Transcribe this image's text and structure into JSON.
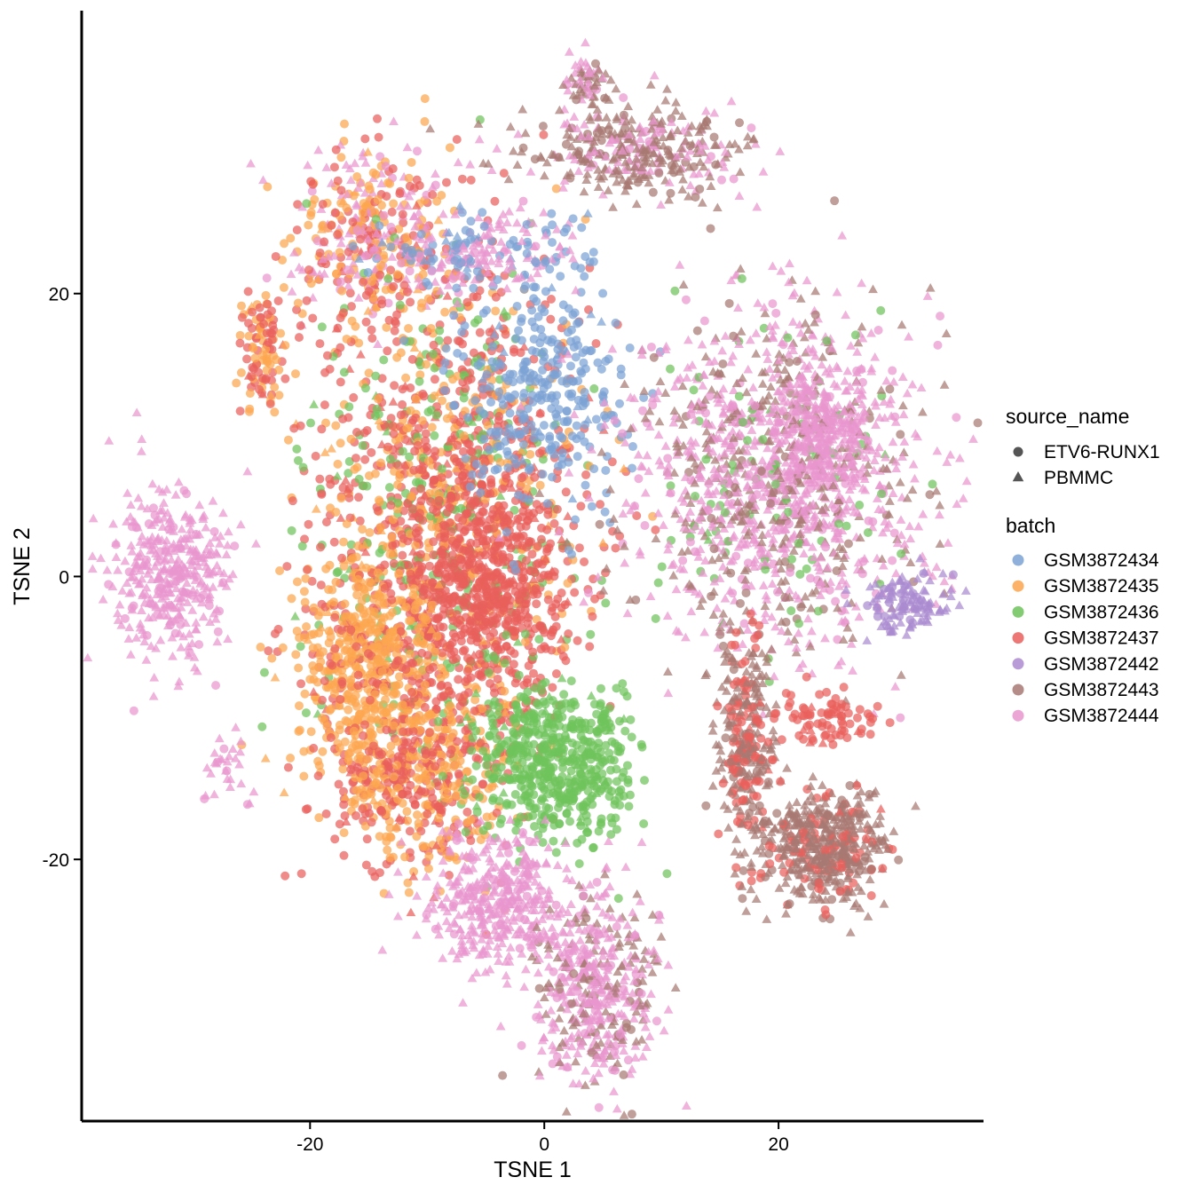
{
  "chart_data": {
    "type": "scatter",
    "title": "",
    "xlabel": "TSNE 1",
    "ylabel": "TSNE 2",
    "xlim": [
      -39.5,
      37.5
    ],
    "ylim": [
      -38.5,
      40
    ],
    "xticks": [
      -20,
      0,
      20
    ],
    "yticks": [
      20,
      0,
      -20
    ],
    "grid": false,
    "legend_position": "right",
    "shape_legend": {
      "title": "source_name",
      "entries": [
        {
          "name": "ETV6-RUNX1",
          "shape": "circle"
        },
        {
          "name": "PBMMC",
          "shape": "triangle"
        }
      ]
    },
    "color_legend": {
      "title": "batch",
      "entries": [
        {
          "name": "GSM3872434",
          "color": "#7ba2d4"
        },
        {
          "name": "GSM3872435",
          "color": "#fca64f"
        },
        {
          "name": "GSM3872436",
          "color": "#6fc35c"
        },
        {
          "name": "GSM3872437",
          "color": "#e95f5c"
        },
        {
          "name": "GSM3872442",
          "color": "#ab8ad0"
        },
        {
          "name": "GSM3872443",
          "color": "#a87872"
        },
        {
          "name": "GSM3872444",
          "color": "#e996cf"
        }
      ]
    },
    "clusters": [
      {
        "label": "upper-left orange/pink",
        "x": -15,
        "y": 24,
        "sx": 3.5,
        "sy": 3.5,
        "n": 380,
        "mix": {
          "GSM3872435": 0.35,
          "GSM3872444": 0.35,
          "GSM3872437": 0.3
        }
      },
      {
        "label": "central red/orange mass",
        "x": -8,
        "y": 5,
        "sx": 6,
        "sy": 9,
        "n": 1500,
        "mix": {
          "GSM3872437": 0.55,
          "GSM3872435": 0.25,
          "GSM3872436": 0.2
        }
      },
      {
        "label": "central red core",
        "x": -5,
        "y": -1,
        "sx": 3.5,
        "sy": 3.5,
        "n": 500,
        "mix": {
          "GSM3872437": 1.0
        }
      },
      {
        "label": "left orange lobe",
        "x": -15,
        "y": -6,
        "sx": 3,
        "sy": 4,
        "n": 500,
        "mix": {
          "GSM3872435": 0.8,
          "GSM3872437": 0.2
        }
      },
      {
        "label": "lower red/orange",
        "x": -11,
        "y": -14,
        "sx": 4,
        "sy": 3.5,
        "n": 500,
        "mix": {
          "GSM3872437": 0.5,
          "GSM3872435": 0.5
        }
      },
      {
        "label": "blue upper-center",
        "x": 0,
        "y": 13,
        "sx": 3.5,
        "sy": 4,
        "n": 300,
        "mix": {
          "GSM3872434": 1.0
        }
      },
      {
        "label": "pink top ridge",
        "x": -6,
        "y": 23,
        "sx": 4.5,
        "sy": 1.5,
        "n": 230,
        "mix": {
          "GSM3872444": 0.6,
          "GSM3872434": 0.4
        }
      },
      {
        "label": "green lower cluster",
        "x": 1,
        "y": -13,
        "sx": 3.5,
        "sy": 2.8,
        "n": 550,
        "mix": {
          "GSM3872436": 1.0
        }
      },
      {
        "label": "pink bottom blob",
        "x": -4,
        "y": -23,
        "sx": 3,
        "sy": 2.2,
        "n": 380,
        "mix": {
          "GSM3872444": 1.0
        }
      },
      {
        "label": "pink/brown bottom-right blob",
        "x": 4.5,
        "y": -29,
        "sx": 2.8,
        "sy": 3.6,
        "n": 480,
        "mix": {
          "GSM3872444": 0.7,
          "GSM3872443": 0.3
        }
      },
      {
        "label": "far-left pink island",
        "x": -32,
        "y": 0,
        "sx": 2.4,
        "sy": 3,
        "n": 380,
        "mix": {
          "GSM3872444": 1.0
        }
      },
      {
        "label": "left small orange/red",
        "x": -24,
        "y": 16,
        "sx": 1,
        "sy": 2.2,
        "n": 100,
        "mix": {
          "GSM3872435": 0.5,
          "GSM3872437": 0.5
        }
      },
      {
        "label": "right pink/brown main",
        "x": 20,
        "y": 7,
        "sx": 6,
        "sy": 6,
        "n": 1400,
        "mix": {
          "GSM3872444": 0.65,
          "GSM3872443": 0.3,
          "GSM3872436": 0.05
        }
      },
      {
        "label": "right pink core",
        "x": 24,
        "y": 10,
        "sx": 2,
        "sy": 2.2,
        "n": 250,
        "mix": {
          "GSM3872444": 1.0
        }
      },
      {
        "label": "right purple lobe",
        "x": 31,
        "y": -2,
        "sx": 1.8,
        "sy": 1.2,
        "n": 120,
        "mix": {
          "GSM3872442": 1.0
        }
      },
      {
        "label": "brown lower-right blob",
        "x": 24,
        "y": -19,
        "sx": 2.8,
        "sy": 2,
        "n": 480,
        "mix": {
          "GSM3872443": 0.8,
          "GSM3872437": 0.2
        }
      },
      {
        "label": "brown lower-right arm",
        "x": 17,
        "y": -12,
        "sx": 1.3,
        "sy": 4.2,
        "n": 320,
        "mix": {
          "GSM3872443": 0.65,
          "GSM3872437": 0.35
        }
      },
      {
        "label": "red small streak",
        "x": 24,
        "y": -10,
        "sx": 2.2,
        "sy": 1,
        "n": 80,
        "mix": {
          "GSM3872437": 1.0
        }
      },
      {
        "label": "top arc",
        "x": 8,
        "y": 30,
        "sx": 5,
        "sy": 1.6,
        "n": 380,
        "mix": {
          "GSM3872443": 0.7,
          "GSM3872444": 0.3
        }
      },
      {
        "label": "top tip",
        "x": 3.5,
        "y": 35,
        "sx": 1,
        "sy": 0.8,
        "n": 60,
        "mix": {
          "GSM3872443": 0.5,
          "GSM3872444": 0.5
        }
      },
      {
        "label": "small left lower islands",
        "x": -27,
        "y": -14,
        "sx": 1,
        "sy": 1.5,
        "n": 30,
        "mix": {
          "GSM3872444": 1.0
        }
      }
    ]
  }
}
